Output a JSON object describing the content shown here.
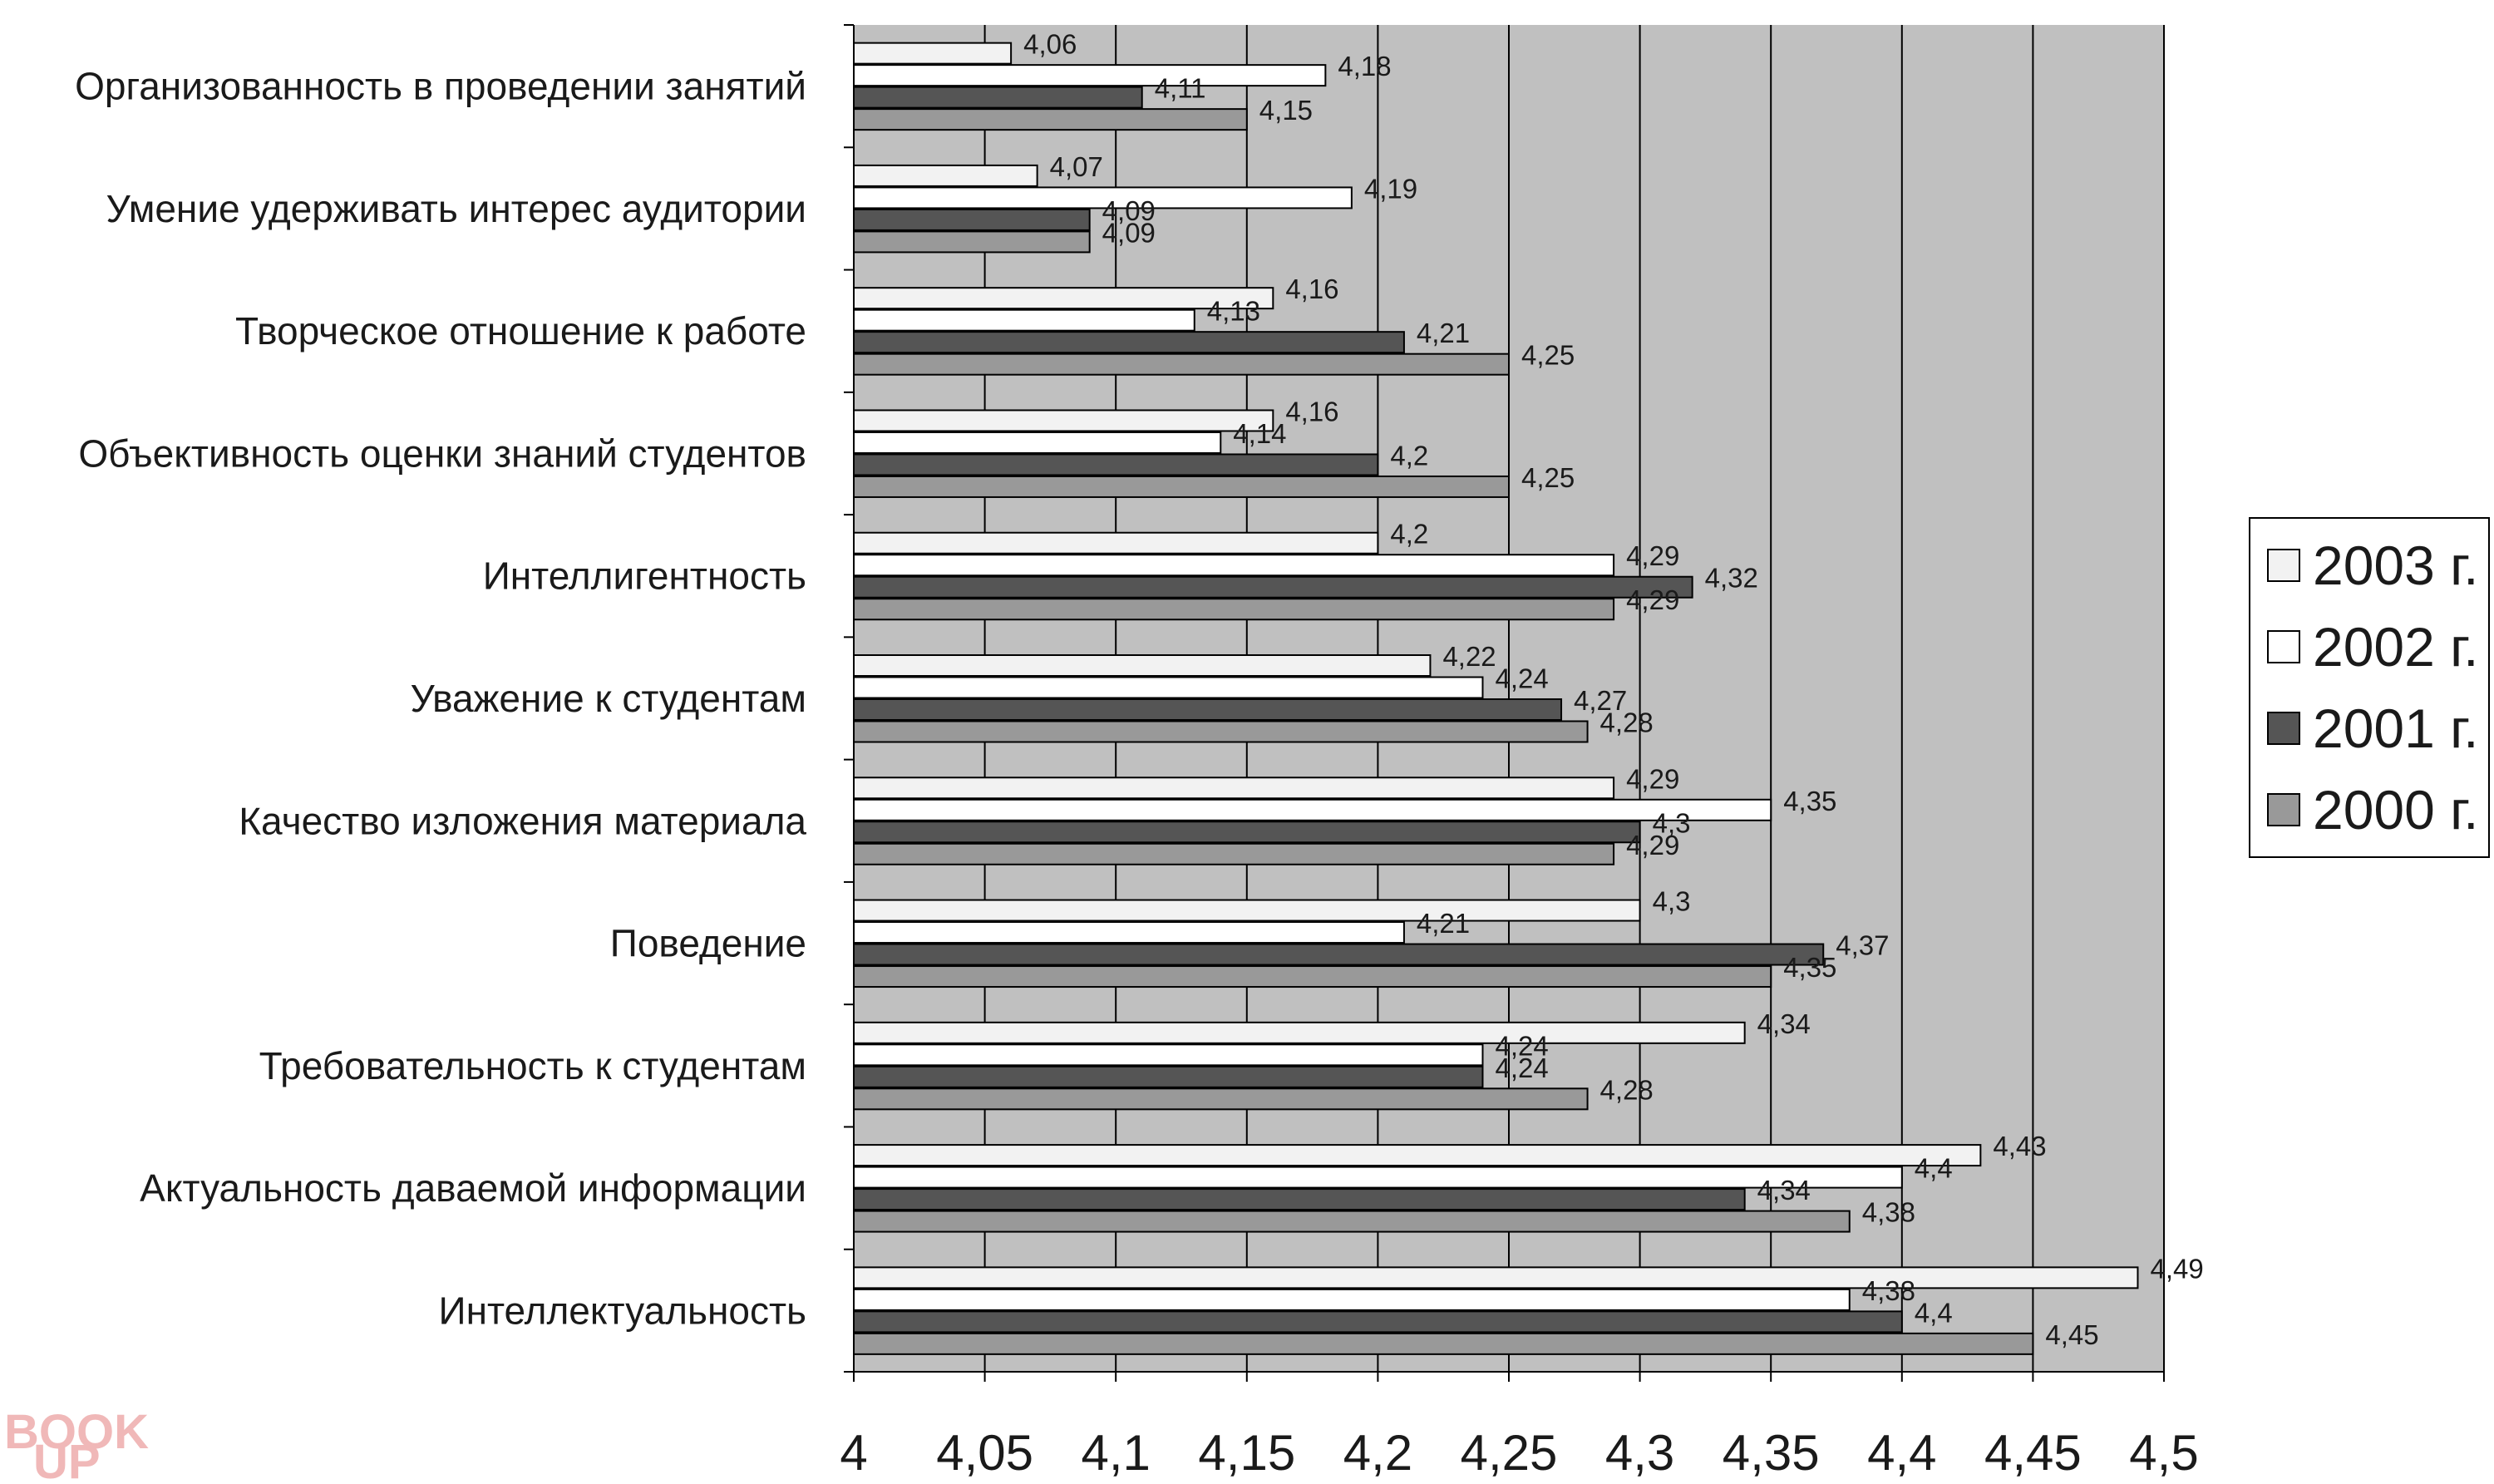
{
  "chart_data": {
    "type": "bar",
    "orientation": "horizontal",
    "categories": [
      "Организованность в проведении занятий",
      "Умение удерживать интерес аудитории",
      "Творческое отношение к работе",
      "Объективность оценки знаний студентов",
      "Интеллигентность",
      "Уважение к студентам",
      "Качество изложения материала",
      "Поведение",
      "Требовательность к студентам",
      "Актуальность даваемой информации",
      "Интеллектуальность"
    ],
    "series": [
      {
        "name": "2003 г.",
        "color": "#f2f2f2",
        "values": [
          4.06,
          4.07,
          4.16,
          4.16,
          4.2,
          4.22,
          4.29,
          4.3,
          4.34,
          4.43,
          4.49
        ],
        "labels": [
          "4,06",
          "4,07",
          "4,16",
          "4,16",
          "4,2",
          "4,22",
          "4,29",
          "4,3",
          "4,34",
          "4,43",
          "4,49"
        ]
      },
      {
        "name": "2002 г.",
        "color": "#ffffff",
        "values": [
          4.18,
          4.19,
          4.13,
          4.14,
          4.29,
          4.24,
          4.35,
          4.21,
          4.24,
          4.4,
          4.38
        ],
        "labels": [
          "4,18",
          "4,19",
          "4,13",
          "4,14",
          "4,29",
          "4,24",
          "4,35",
          "4,21",
          "4,24",
          "4,4",
          "4,38"
        ]
      },
      {
        "name": "2001 г.",
        "color": "#555555",
        "values": [
          4.11,
          4.09,
          4.21,
          4.2,
          4.32,
          4.27,
          4.3,
          4.37,
          4.24,
          4.34,
          4.4
        ],
        "labels": [
          "4,11",
          "4,09",
          "4,21",
          "4,2",
          "4,32",
          "4,27",
          "4,3",
          "4,37",
          "4,24",
          "4,34",
          "4,4"
        ]
      },
      {
        "name": "2000 г.",
        "color": "#999999",
        "values": [
          4.15,
          4.09,
          4.25,
          4.25,
          4.29,
          4.28,
          4.29,
          4.35,
          4.28,
          4.38,
          4.45
        ],
        "labels": [
          "4,15",
          "4,09",
          "4,25",
          "4,25",
          "4,29",
          "4,28",
          "4,29",
          "4,35",
          "4,28",
          "4,38",
          "4,45"
        ]
      }
    ],
    "xlim": [
      4,
      4.5
    ],
    "x_ticks": [
      4,
      4.05,
      4.1,
      4.15,
      4.2,
      4.25,
      4.3,
      4.35,
      4.4,
      4.45,
      4.5
    ],
    "x_tick_labels": [
      "4",
      "4,05",
      "4,1",
      "4,15",
      "4,2",
      "4,25",
      "4,3",
      "4,35",
      "4,4",
      "4,45",
      "4,5"
    ],
    "grid": "vertical",
    "plot_background": "#c0c0c0",
    "legend_position": "right",
    "title": "",
    "xlabel": "",
    "ylabel": ""
  },
  "watermark": {
    "line1": "BOOK",
    "line2": "UP"
  }
}
